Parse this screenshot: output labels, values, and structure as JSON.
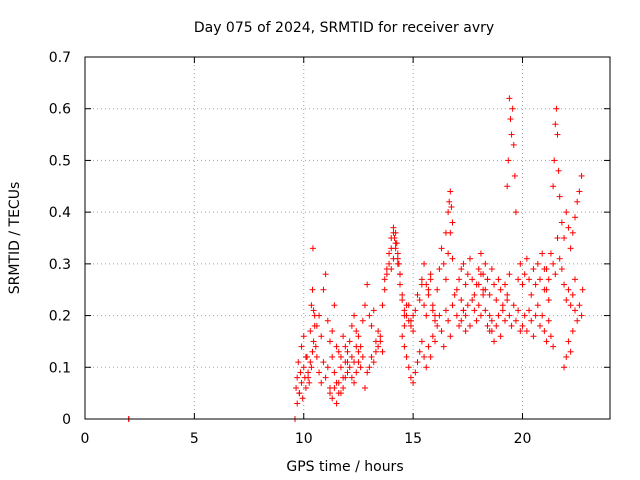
{
  "chart_data": {
    "type": "scatter",
    "title": "Day 075 of 2024, SRMTID for receiver avry",
    "xlabel": "GPS time / hours",
    "ylabel": "SRMTID / TECUs",
    "xlim": [
      0,
      24
    ],
    "ylim": [
      0,
      0.7
    ],
    "xticks": [
      0,
      5,
      10,
      15,
      20
    ],
    "xtick_labels": [
      "0",
      "5",
      "10",
      "15",
      "20"
    ],
    "yticks": [
      0,
      0.1,
      0.2,
      0.3,
      0.4,
      0.5,
      0.6,
      0.7
    ],
    "ytick_labels": [
      "0",
      "0.1",
      "0.2",
      "0.3",
      "0.4",
      "0.5",
      "0.6",
      "0.7"
    ],
    "grid": true,
    "marker": "plus",
    "color": "#ff0000",
    "series": [
      {
        "name": "SRMTID",
        "x": [
          2.0,
          2.0,
          9.6,
          9.6,
          9.65,
          9.7,
          9.75,
          9.8,
          9.85,
          9.9,
          9.95,
          10.0,
          10.05,
          10.1,
          10.15,
          10.2,
          10.25,
          10.3,
          10.35,
          10.4,
          10.45,
          10.5,
          9.7,
          9.8,
          9.9,
          10.0,
          10.1,
          10.2,
          10.3,
          10.35,
          10.4,
          10.42,
          10.45,
          10.5,
          10.55,
          10.6,
          10.7,
          10.8,
          10.9,
          11.0,
          11.1,
          11.2,
          11.3,
          11.4,
          11.5,
          11.6,
          11.7,
          11.8,
          11.9,
          12.0,
          10.6,
          10.7,
          10.8,
          10.9,
          11.0,
          11.1,
          11.2,
          11.3,
          11.4,
          11.5,
          11.6,
          11.7,
          11.8,
          11.9,
          12.0,
          11.2,
          11.3,
          11.4,
          11.5,
          11.6,
          11.7,
          11.8,
          11.9,
          12.0,
          12.1,
          12.2,
          12.3,
          12.4,
          12.5,
          12.1,
          12.2,
          12.3,
          12.4,
          12.5,
          12.6,
          12.7,
          12.8,
          12.9,
          13.0,
          13.1,
          13.2,
          13.3,
          13.4,
          13.5,
          12.2,
          12.3,
          12.4,
          12.5,
          12.6,
          12.7,
          12.8,
          12.9,
          13.0,
          13.1,
          13.2,
          13.3,
          13.4,
          13.5,
          13.6,
          13.6,
          13.7,
          13.8,
          13.9,
          14.0,
          14.1,
          14.2,
          14.3,
          14.4,
          14.5,
          14.6,
          14.7,
          14.8,
          14.9,
          15.0,
          13.7,
          13.8,
          13.9,
          14.0,
          14.1,
          14.2,
          14.3,
          14.4,
          14.5,
          14.6,
          14.0,
          14.1,
          14.15,
          14.2,
          14.25,
          14.3,
          14.35,
          14.4,
          14.5,
          14.6,
          14.7,
          14.8,
          14.9,
          15.0,
          15.1,
          15.2,
          15.3,
          15.4,
          15.5,
          15.6,
          15.7,
          15.8,
          15.9,
          14.6,
          14.7,
          14.8,
          14.9,
          15.0,
          15.1,
          15.2,
          15.3,
          15.4,
          15.5,
          15.6,
          15.7,
          15.8,
          15.9,
          16.0,
          15.4,
          15.5,
          15.6,
          15.7,
          15.8,
          15.9,
          16.0,
          16.1,
          16.2,
          16.3,
          16.4,
          16.5,
          16.6,
          16.7,
          16.8,
          16.0,
          16.1,
          16.2,
          16.3,
          16.4,
          16.5,
          16.6,
          16.7,
          16.8,
          16.9,
          17.0,
          17.1,
          17.2,
          17.3,
          17.4,
          16.5,
          16.6,
          16.65,
          16.7,
          16.75,
          16.8,
          17.0,
          17.1,
          17.2,
          17.3,
          17.4,
          17.5,
          17.6,
          17.7,
          17.8,
          17.9,
          18.0,
          18.1,
          18.2,
          18.3,
          18.4,
          17.2,
          17.3,
          17.4,
          17.5,
          17.6,
          17.7,
          17.8,
          17.9,
          18.0,
          18.1,
          18.2,
          18.3,
          18.4,
          18.5,
          18.6,
          18.0,
          18.1,
          18.2,
          18.3,
          18.4,
          18.5,
          18.6,
          18.7,
          18.8,
          18.9,
          19.0,
          19.1,
          19.2,
          19.3,
          19.4,
          18.5,
          18.6,
          18.7,
          18.8,
          18.9,
          19.0,
          19.1,
          19.2,
          19.3,
          19.4,
          19.5,
          19.6,
          19.7,
          19.8,
          19.9,
          19.3,
          19.35,
          19.4,
          19.45,
          19.5,
          19.55,
          19.6,
          19.65,
          19.7,
          19.8,
          19.9,
          20.0,
          20.1,
          20.2,
          20.3,
          20.4,
          20.5,
          20.6,
          20.7,
          20.8,
          20.9,
          21.0,
          21.1,
          21.2,
          20.0,
          20.1,
          20.2,
          20.3,
          20.4,
          20.5,
          20.6,
          20.7,
          20.8,
          20.9,
          21.0,
          21.1,
          21.2,
          21.3,
          21.4,
          21.0,
          21.1,
          21.2,
          21.3,
          21.4,
          21.5,
          21.6,
          21.7,
          21.8,
          21.9,
          22.0,
          22.1,
          22.2,
          22.3,
          22.4,
          21.4,
          21.45,
          21.5,
          21.55,
          21.6,
          21.65,
          21.7,
          21.8,
          21.9,
          22.0,
          22.1,
          22.2,
          22.3,
          22.4,
          22.5,
          22.6,
          22.7,
          21.9,
          22.0,
          22.1,
          22.2,
          22.3,
          22.4,
          22.5,
          22.6,
          22.7,
          22.75
        ],
        "y": [
          0.0,
          0.0,
          0.0,
          0.0,
          0.06,
          0.08,
          0.11,
          0.05,
          0.09,
          0.07,
          0.04,
          0.1,
          0.08,
          0.06,
          0.12,
          0.09,
          0.07,
          0.11,
          0.1,
          0.13,
          0.15,
          0.18,
          0.03,
          0.05,
          0.14,
          0.16,
          0.12,
          0.08,
          0.17,
          0.22,
          0.25,
          0.33,
          0.21,
          0.2,
          0.14,
          0.12,
          0.09,
          0.07,
          0.11,
          0.08,
          0.1,
          0.06,
          0.12,
          0.09,
          0.07,
          0.05,
          0.1,
          0.08,
          0.11,
          0.13,
          0.18,
          0.2,
          0.16,
          0.25,
          0.28,
          0.19,
          0.15,
          0.17,
          0.22,
          0.14,
          0.13,
          0.12,
          0.16,
          0.14,
          0.11,
          0.05,
          0.04,
          0.06,
          0.03,
          0.07,
          0.05,
          0.06,
          0.08,
          0.09,
          0.1,
          0.12,
          0.11,
          0.14,
          0.13,
          0.15,
          0.18,
          0.2,
          0.17,
          0.16,
          0.14,
          0.19,
          0.22,
          0.26,
          0.2,
          0.18,
          0.21,
          0.15,
          0.17,
          0.16,
          0.08,
          0.07,
          0.09,
          0.11,
          0.1,
          0.12,
          0.06,
          0.09,
          0.1,
          0.12,
          0.11,
          0.13,
          0.14,
          0.15,
          0.13,
          0.22,
          0.25,
          0.28,
          0.3,
          0.33,
          0.36,
          0.34,
          0.31,
          0.28,
          0.24,
          0.2,
          0.22,
          0.19,
          0.18,
          0.2,
          0.27,
          0.29,
          0.32,
          0.35,
          0.37,
          0.33,
          0.3,
          0.26,
          0.23,
          0.21,
          0.29,
          0.31,
          0.35,
          0.36,
          0.34,
          0.32,
          0.3,
          0.28,
          0.16,
          0.14,
          0.12,
          0.1,
          0.08,
          0.07,
          0.09,
          0.11,
          0.13,
          0.15,
          0.12,
          0.1,
          0.14,
          0.12,
          0.16,
          0.18,
          0.2,
          0.22,
          0.19,
          0.17,
          0.21,
          0.24,
          0.23,
          0.26,
          0.22,
          0.2,
          0.25,
          0.27,
          0.21,
          0.19,
          0.27,
          0.3,
          0.26,
          0.24,
          0.28,
          0.22,
          0.2,
          0.25,
          0.29,
          0.33,
          0.3,
          0.27,
          0.32,
          0.36,
          0.31,
          0.15,
          0.18,
          0.2,
          0.17,
          0.14,
          0.21,
          0.19,
          0.16,
          0.22,
          0.24,
          0.2,
          0.18,
          0.23,
          0.21,
          0.17,
          0.36,
          0.4,
          0.42,
          0.44,
          0.41,
          0.38,
          0.25,
          0.27,
          0.29,
          0.3,
          0.26,
          0.28,
          0.31,
          0.27,
          0.24,
          0.26,
          0.29,
          0.32,
          0.28,
          0.25,
          0.27,
          0.19,
          0.21,
          0.2,
          0.22,
          0.18,
          0.23,
          0.21,
          0.19,
          0.22,
          0.2,
          0.24,
          0.21,
          0.18,
          0.2,
          0.17,
          0.26,
          0.28,
          0.25,
          0.3,
          0.27,
          0.24,
          0.29,
          0.26,
          0.23,
          0.27,
          0.25,
          0.22,
          0.26,
          0.24,
          0.28,
          0.17,
          0.19,
          0.15,
          0.18,
          0.2,
          0.16,
          0.21,
          0.19,
          0.23,
          0.2,
          0.18,
          0.22,
          0.19,
          0.21,
          0.17,
          0.45,
          0.5,
          0.62,
          0.58,
          0.55,
          0.6,
          0.53,
          0.47,
          0.4,
          0.27,
          0.3,
          0.26,
          0.28,
          0.31,
          0.27,
          0.24,
          0.29,
          0.26,
          0.3,
          0.27,
          0.32,
          0.29,
          0.25,
          0.23,
          0.18,
          0.2,
          0.17,
          0.21,
          0.19,
          0.16,
          0.2,
          0.22,
          0.18,
          0.2,
          0.17,
          0.15,
          0.19,
          0.16,
          0.14,
          0.25,
          0.29,
          0.27,
          0.32,
          0.3,
          0.28,
          0.35,
          0.31,
          0.29,
          0.26,
          0.23,
          0.25,
          0.22,
          0.24,
          0.27,
          0.45,
          0.5,
          0.57,
          0.6,
          0.55,
          0.48,
          0.43,
          0.38,
          0.35,
          0.4,
          0.37,
          0.33,
          0.36,
          0.39,
          0.42,
          0.44,
          0.47,
          0.1,
          0.12,
          0.15,
          0.13,
          0.17,
          0.21,
          0.19,
          0.22,
          0.2,
          0.25
        ]
      }
    ]
  }
}
